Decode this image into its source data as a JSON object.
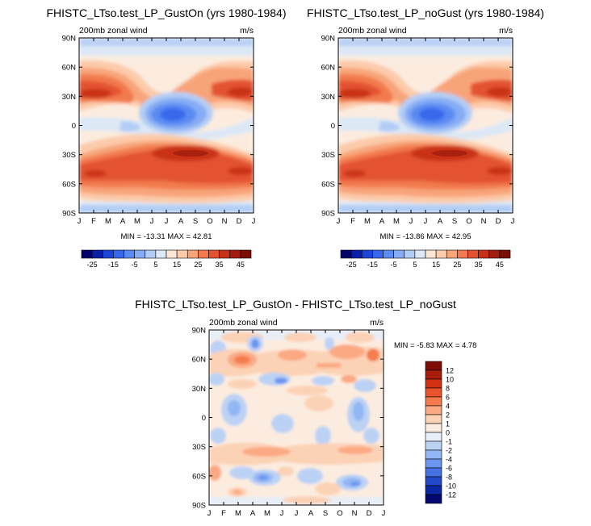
{
  "chart_data": [
    {
      "type": "contour",
      "title": "FHISTC_LTso.test_LP_GustOn (yrs 1980-1984)",
      "subtitle_left": "200mb zonal wind",
      "subtitle_right": "m/s",
      "x_ticks": [
        "J",
        "F",
        "M",
        "A",
        "M",
        "J",
        "J",
        "A",
        "S",
        "O",
        "N",
        "D",
        "J"
      ],
      "y_ticks": [
        "90N",
        "60N",
        "30N",
        "0",
        "30S",
        "60S",
        "90S"
      ],
      "stats_text": "MIN = -13.31 MAX =  42.81",
      "min": -13.31,
      "max": 42.81,
      "colorbar": {
        "orientation": "horizontal",
        "tick_labels": [
          "-25",
          "-15",
          "-5",
          "5",
          "15",
          "25",
          "35",
          "45"
        ]
      }
    },
    {
      "type": "contour",
      "title": "FHISTC_LTso.test_LP_noGust (yrs 1980-1984)",
      "subtitle_left": "200mb zonal wind",
      "subtitle_right": "m/s",
      "x_ticks": [
        "J",
        "F",
        "M",
        "A",
        "M",
        "J",
        "J",
        "A",
        "S",
        "O",
        "N",
        "D",
        "J"
      ],
      "y_ticks": [
        "90N",
        "60N",
        "30N",
        "0",
        "30S",
        "60S",
        "90S"
      ],
      "stats_text": "MIN = -13.86 MAX =  42.95",
      "min": -13.86,
      "max": 42.95,
      "colorbar": {
        "orientation": "horizontal",
        "tick_labels": [
          "-25",
          "-15",
          "-5",
          "5",
          "15",
          "25",
          "35",
          "45"
        ]
      }
    },
    {
      "type": "contour",
      "title": "FHISTC_LTso.test_LP_GustOn - FHISTC_LTso.test_LP_noGust",
      "subtitle_left": "200mb zonal wind",
      "subtitle_right": "m/s",
      "x_ticks": [
        "J",
        "F",
        "M",
        "A",
        "M",
        "J",
        "J",
        "A",
        "S",
        "O",
        "N",
        "D",
        "J"
      ],
      "y_ticks": [
        "90N",
        "60N",
        "30N",
        "0",
        "30S",
        "60S",
        "90S"
      ],
      "stats_text": "MIN =  -5.83 MAX =   4.78",
      "min": -5.83,
      "max": 4.78,
      "colorbar": {
        "orientation": "vertical",
        "tick_labels": [
          "12",
          "10",
          "8",
          "6",
          "4",
          "2",
          "1",
          "0",
          "-1",
          "-2",
          "-4",
          "-6",
          "-8",
          "-10",
          "-12"
        ]
      }
    }
  ],
  "palette": {
    "blue_red": [
      "#02046b",
      "#0a1fa8",
      "#1d45d8",
      "#3767ec",
      "#5a8bf2",
      "#85acf4",
      "#b2cdf5",
      "#dce8f6",
      "#fbe6d6",
      "#fccbaa",
      "#f8a479",
      "#f27a4e",
      "#e35330",
      "#c93018",
      "#a21d0d",
      "#7a0d04"
    ],
    "diff": [
      "#7d0d04",
      "#a81c0a",
      "#d03112",
      "#e9532b",
      "#f57b4e",
      "#fba983",
      "#fcd2b6",
      "#fcecdf",
      "#e7eef8",
      "#bcd2f5",
      "#93b6f4",
      "#6b95ef",
      "#4472e4",
      "#2449c8",
      "#0b26a4",
      "#020a72"
    ]
  }
}
